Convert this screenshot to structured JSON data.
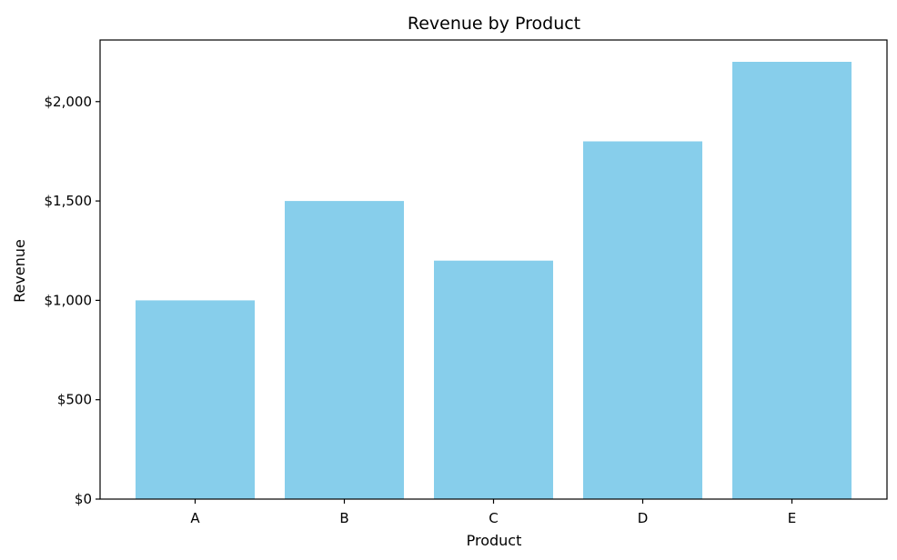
{
  "chart_data": {
    "type": "bar",
    "title": "Revenue by Product",
    "xlabel": "Product",
    "ylabel": "Revenue",
    "categories": [
      "A",
      "B",
      "C",
      "D",
      "E"
    ],
    "values": [
      1000,
      1500,
      1200,
      1800,
      2200
    ],
    "ylim": [
      0,
      2310
    ],
    "yticks": [
      0,
      500,
      1000,
      1500,
      2000
    ],
    "ytick_labels": [
      "$0",
      "$500",
      "$1,000",
      "$1,500",
      "$2,000"
    ],
    "bar_color": "#87CEEB",
    "grid": false,
    "legend": "none"
  }
}
